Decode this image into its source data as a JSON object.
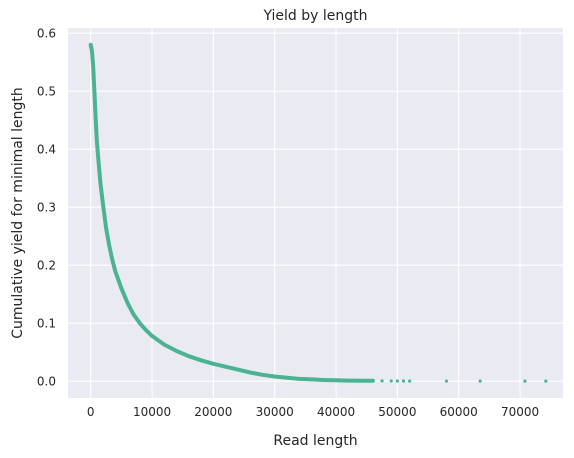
{
  "chart_data": {
    "type": "scatter",
    "title": "Yield by length",
    "xlabel": "Read length",
    "ylabel": "Cumulative yield for minimal length",
    "xlim": [
      -3700,
      77000
    ],
    "ylim": [
      -0.029,
      0.609
    ],
    "xticks": [
      0,
      10000,
      20000,
      30000,
      40000,
      50000,
      60000,
      70000
    ],
    "xtick_labels": [
      "0",
      "10000",
      "20000",
      "30000",
      "40000",
      "50000",
      "60000",
      "70000"
    ],
    "yticks": [
      0.0,
      0.1,
      0.2,
      0.3,
      0.4,
      0.5,
      0.6
    ],
    "ytick_labels": [
      "0.0",
      "0.1",
      "0.2",
      "0.3",
      "0.4",
      "0.5",
      "0.6"
    ],
    "grid": true,
    "background_color": "#EAEAF2",
    "grid_color": "#FFFFFF",
    "point_color": "#4CB391",
    "series": [
      {
        "points": [
          [
            0,
            0.58
          ],
          [
            200,
            0.57
          ],
          [
            400,
            0.545
          ],
          [
            600,
            0.5
          ],
          [
            800,
            0.455
          ],
          [
            1000,
            0.415
          ],
          [
            1300,
            0.375
          ],
          [
            1600,
            0.34
          ],
          [
            2000,
            0.305
          ],
          [
            2500,
            0.265
          ],
          [
            3000,
            0.235
          ],
          [
            3500,
            0.21
          ],
          [
            4000,
            0.19
          ],
          [
            5000,
            0.16
          ],
          [
            6000,
            0.135
          ],
          [
            7000,
            0.115
          ],
          [
            8000,
            0.1
          ],
          [
            9000,
            0.088
          ],
          [
            10000,
            0.078
          ],
          [
            12000,
            0.063
          ],
          [
            14000,
            0.052
          ],
          [
            16000,
            0.043
          ],
          [
            18000,
            0.036
          ],
          [
            20000,
            0.03
          ],
          [
            22000,
            0.025
          ],
          [
            24000,
            0.02
          ],
          [
            26000,
            0.015
          ],
          [
            28000,
            0.011
          ],
          [
            30000,
            0.008
          ],
          [
            32000,
            0.006
          ],
          [
            34000,
            0.004
          ],
          [
            36000,
            0.003
          ],
          [
            38000,
            0.002
          ],
          [
            40000,
            0.0015
          ],
          [
            42000,
            0.001
          ],
          [
            43000,
            0.001
          ],
          [
            44500,
            0.0008
          ],
          [
            46000,
            0.0006
          ],
          [
            47500,
            0.0005
          ],
          [
            49000,
            0.0004
          ],
          [
            50000,
            0.0003
          ],
          [
            51000,
            0.0003
          ],
          [
            52000,
            0.0002
          ],
          [
            58000,
            0.0002
          ],
          [
            63500,
            0.0001
          ],
          [
            70800,
            0.0001
          ],
          [
            74200,
            5e-05
          ]
        ]
      }
    ]
  }
}
